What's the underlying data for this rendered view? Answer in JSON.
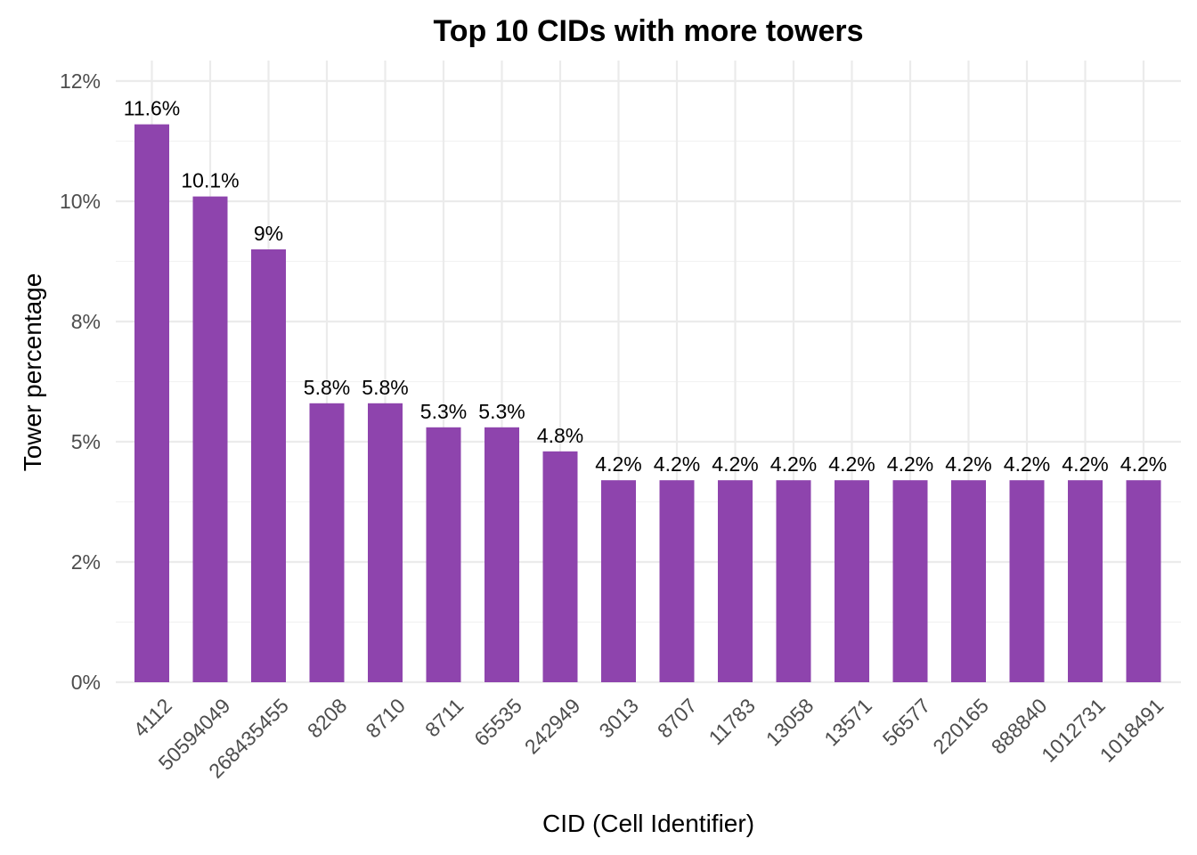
{
  "chart_data": {
    "type": "bar",
    "title": "Top 10 CIDs with more towers",
    "xlabel": "CID (Cell Identifier)",
    "ylabel": "Tower percentage",
    "categories": [
      "4112",
      "50594049",
      "268435455",
      "8208",
      "8710",
      "8711",
      "65535",
      "242949",
      "3013",
      "8707",
      "11783",
      "13058",
      "13571",
      "56577",
      "220165",
      "888840",
      "1012731",
      "1018491"
    ],
    "values": [
      11.6,
      10.1,
      9,
      5.8,
      5.8,
      5.3,
      5.3,
      4.8,
      4.2,
      4.2,
      4.2,
      4.2,
      4.2,
      4.2,
      4.2,
      4.2,
      4.2,
      4.2
    ],
    "data_labels": [
      "11.6%",
      "10.1%",
      "9%",
      "5.8%",
      "5.8%",
      "5.3%",
      "5.3%",
      "4.8%",
      "4.2%",
      "4.2%",
      "4.2%",
      "4.2%",
      "4.2%",
      "4.2%",
      "4.2%",
      "4.2%",
      "4.2%",
      "4.2%"
    ],
    "y_ticks": [
      0,
      2.5,
      5,
      7.5,
      10,
      12.5
    ],
    "y_tick_labels": [
      "0%",
      "2%",
      "5%",
      "8%",
      "10%",
      "12%"
    ],
    "ylim": [
      0,
      12.5
    ],
    "grid": true,
    "legend": "none",
    "bar_color": "#8e44ad"
  }
}
